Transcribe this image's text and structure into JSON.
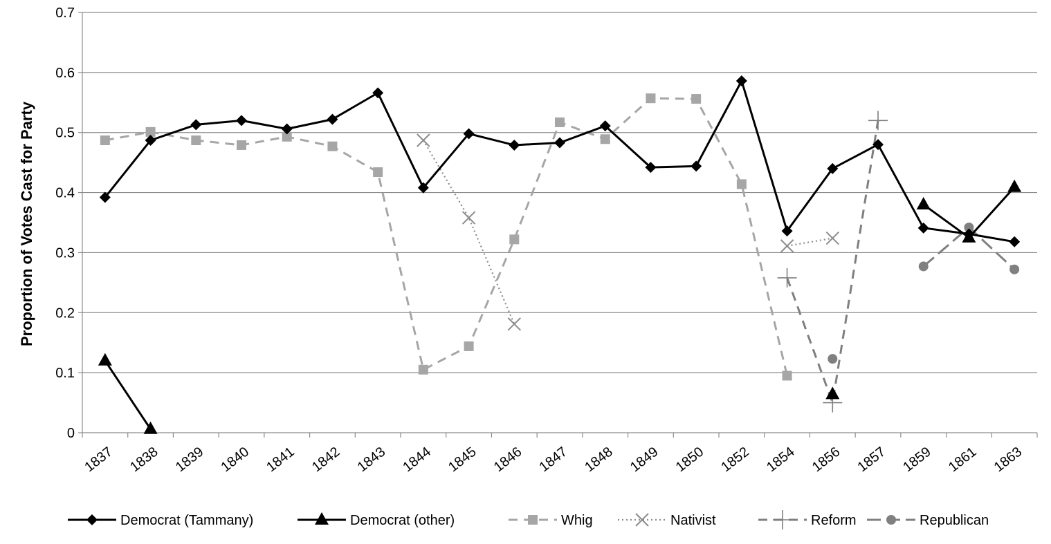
{
  "chart_data": {
    "type": "line",
    "title": "",
    "xlabel": "",
    "ylabel": "Proportion of Votes Cast for Party",
    "ylim": [
      0,
      0.7
    ],
    "yticks": [
      "0",
      "0.1",
      "0.2",
      "0.3",
      "0.4",
      "0.5",
      "0.6",
      "0.7"
    ],
    "categories": [
      "1837",
      "1838",
      "1839",
      "1840",
      "1841",
      "1842",
      "1843",
      "1844",
      "1845",
      "1846",
      "1847",
      "1848",
      "1849",
      "1850",
      "1852",
      "1854",
      "1856",
      "1857",
      "1859",
      "1861",
      "1863"
    ],
    "grid": true,
    "legend_position": "bottom",
    "series": [
      {
        "name": "Democrat (Tammany)",
        "style": "solid",
        "marker": "diamond",
        "color": "#000000",
        "values": [
          0.392,
          0.487,
          0.513,
          0.52,
          0.506,
          0.522,
          0.566,
          0.408,
          0.498,
          0.479,
          0.483,
          0.511,
          0.442,
          0.444,
          0.586,
          0.336,
          0.44,
          0.48,
          0.341,
          0.331,
          0.318
        ]
      },
      {
        "name": "Democrat (other)",
        "style": "solid",
        "marker": "triangle",
        "color": "#000000",
        "values": [
          0.12,
          0.006,
          null,
          null,
          null,
          null,
          null,
          null,
          null,
          null,
          null,
          null,
          null,
          null,
          null,
          null,
          0.064,
          null,
          0.38,
          0.325,
          0.409
        ]
      },
      {
        "name": "Whig",
        "style": "dash",
        "marker": "square",
        "color": "#a6a6a6",
        "values": [
          0.487,
          0.501,
          0.487,
          0.479,
          0.493,
          0.477,
          0.434,
          0.105,
          0.144,
          0.322,
          0.517,
          0.489,
          0.557,
          0.556,
          0.414,
          0.095,
          null,
          null,
          null,
          null,
          null
        ]
      },
      {
        "name": "Nativist",
        "style": "dot",
        "marker": "x",
        "color": "#8c8c8c",
        "values": [
          null,
          null,
          null,
          null,
          null,
          null,
          null,
          0.487,
          0.358,
          0.181,
          null,
          null,
          null,
          null,
          null,
          0.311,
          0.324,
          null,
          null,
          null,
          null
        ]
      },
      {
        "name": "Reform",
        "style": "dash",
        "marker": "plus",
        "color": "#7f7f7f",
        "values": [
          null,
          null,
          null,
          null,
          null,
          null,
          null,
          null,
          null,
          null,
          null,
          null,
          null,
          null,
          null,
          0.258,
          0.05,
          0.52,
          null,
          null,
          null
        ]
      },
      {
        "name": "Republican",
        "style": "longdash",
        "marker": "circle",
        "color": "#808080",
        "values": [
          null,
          null,
          null,
          null,
          null,
          null,
          null,
          null,
          null,
          null,
          null,
          null,
          null,
          null,
          null,
          null,
          0.123,
          null,
          0.277,
          0.342,
          0.272
        ]
      }
    ]
  }
}
